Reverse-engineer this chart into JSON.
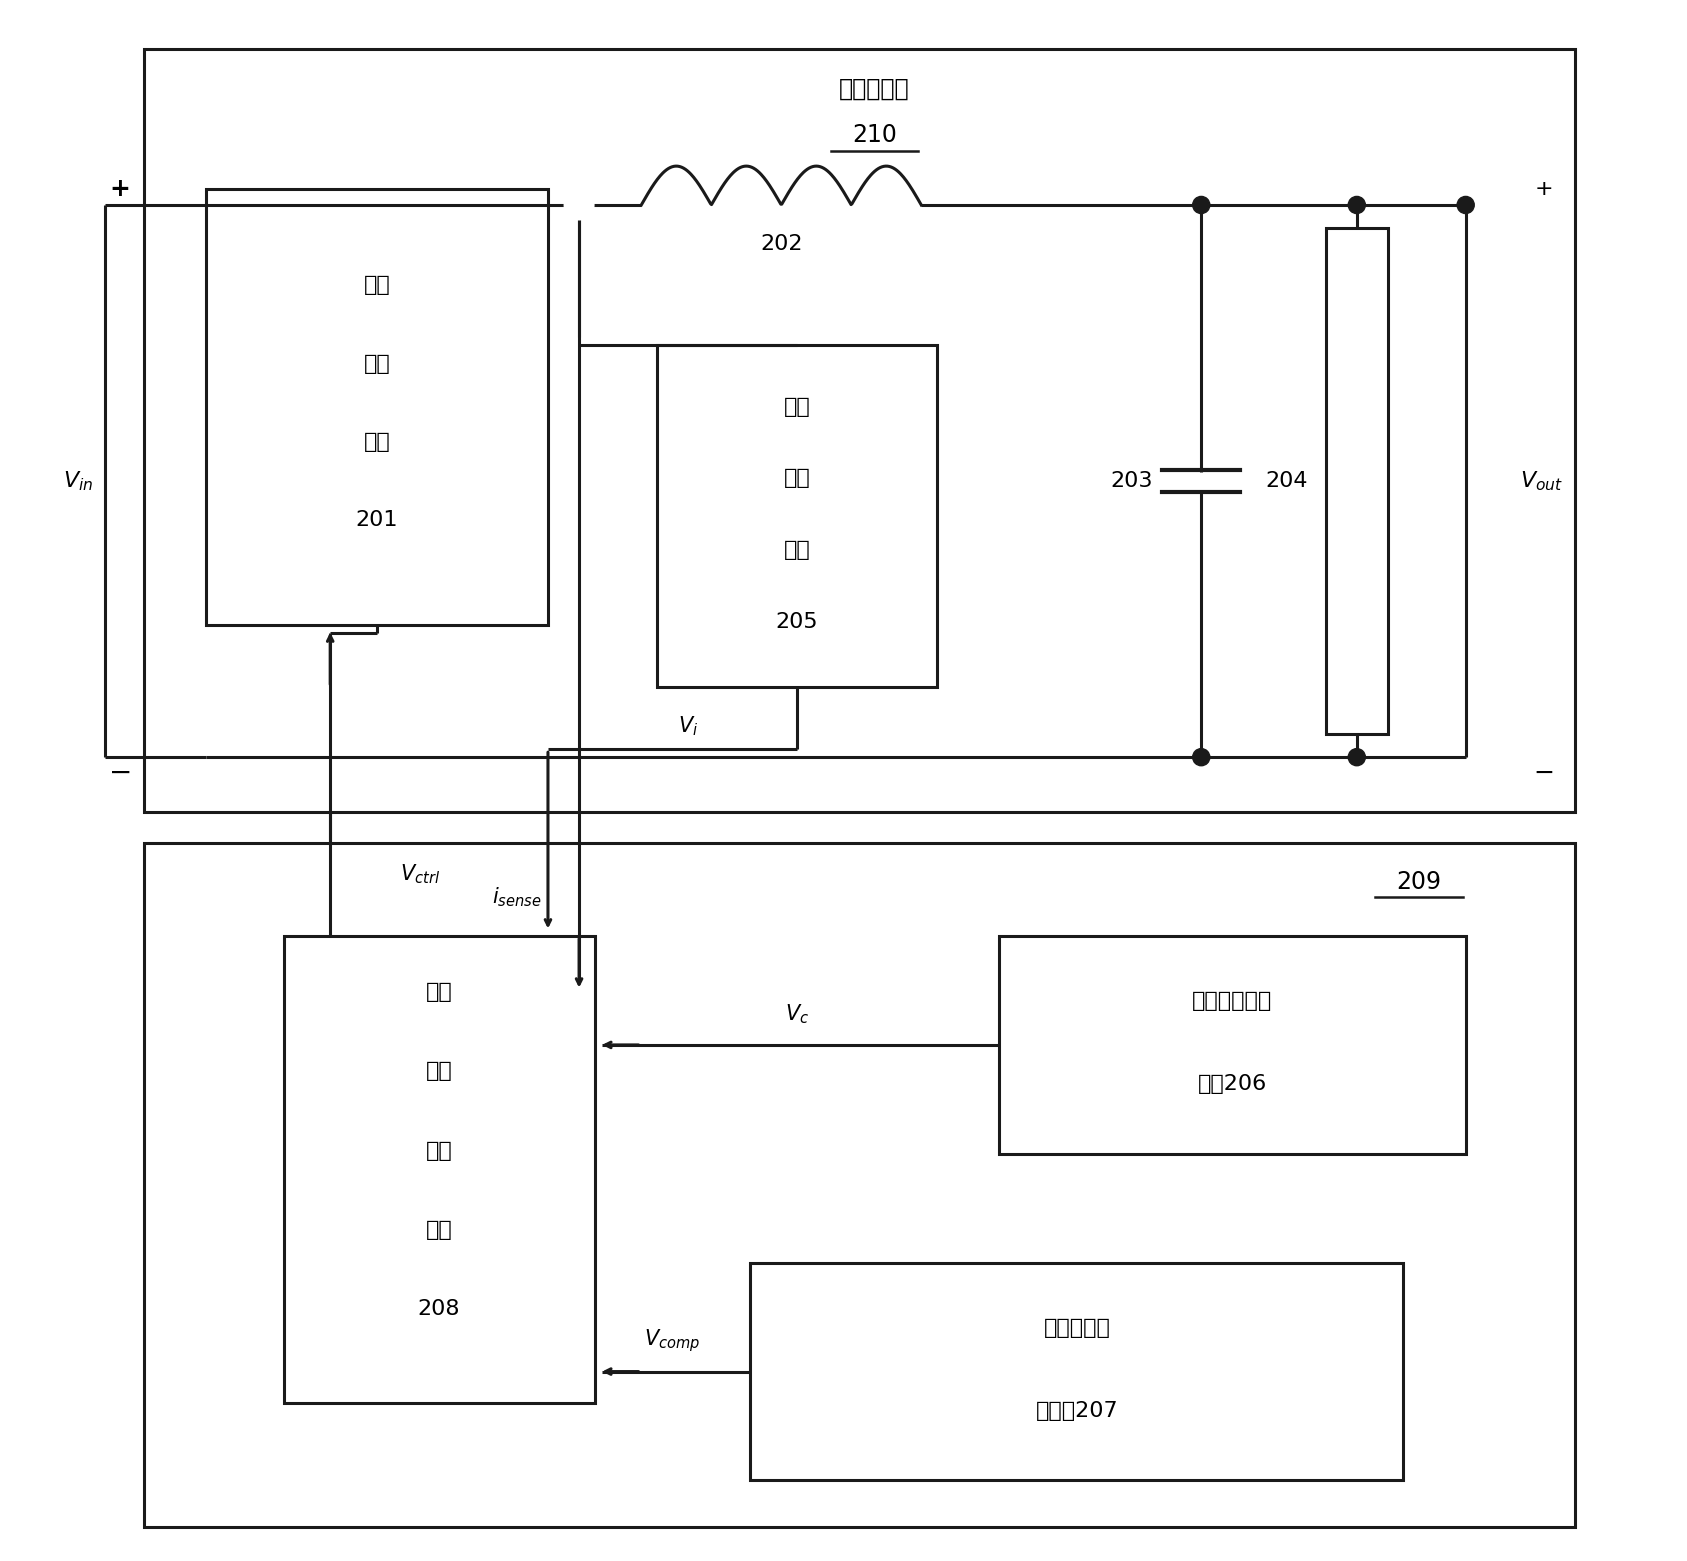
{
  "fig_width": 16.87,
  "fig_height": 15.61,
  "bg_color": "#ffffff",
  "line_color": "#1a1a1a",
  "lw": 2.2,
  "title_cn": "功率级电路",
  "label_210": "210",
  "label_209": "209",
  "label_202": "202",
  "label_203": "203",
  "label_204": "204",
  "box201_lines": [
    "开关",
    "器件",
    "电路",
    "201"
  ],
  "box205_lines": [
    "电流",
    "检测",
    "电路",
    "205"
  ],
  "box208_lines": [
    "控制",
    "信号",
    "发生",
    "电路",
    "208"
  ],
  "box206_lines": [
    "误差信号发生",
    "电路206"
  ],
  "box207_lines": [
    "补偿信号发",
    "生电路207"
  ],
  "Vin_label": "$V_{in}$",
  "Vout_label": "$V_{out}$",
  "isense_label": "$i_{sense}$",
  "Vctrl_label": "$V_{ctrl}$",
  "Vi_label": "$V_i$",
  "Vc_label": "$V_c$",
  "Vcomp_label": "$V_{comp}$",
  "plus_label": "+",
  "minus_label": "−"
}
